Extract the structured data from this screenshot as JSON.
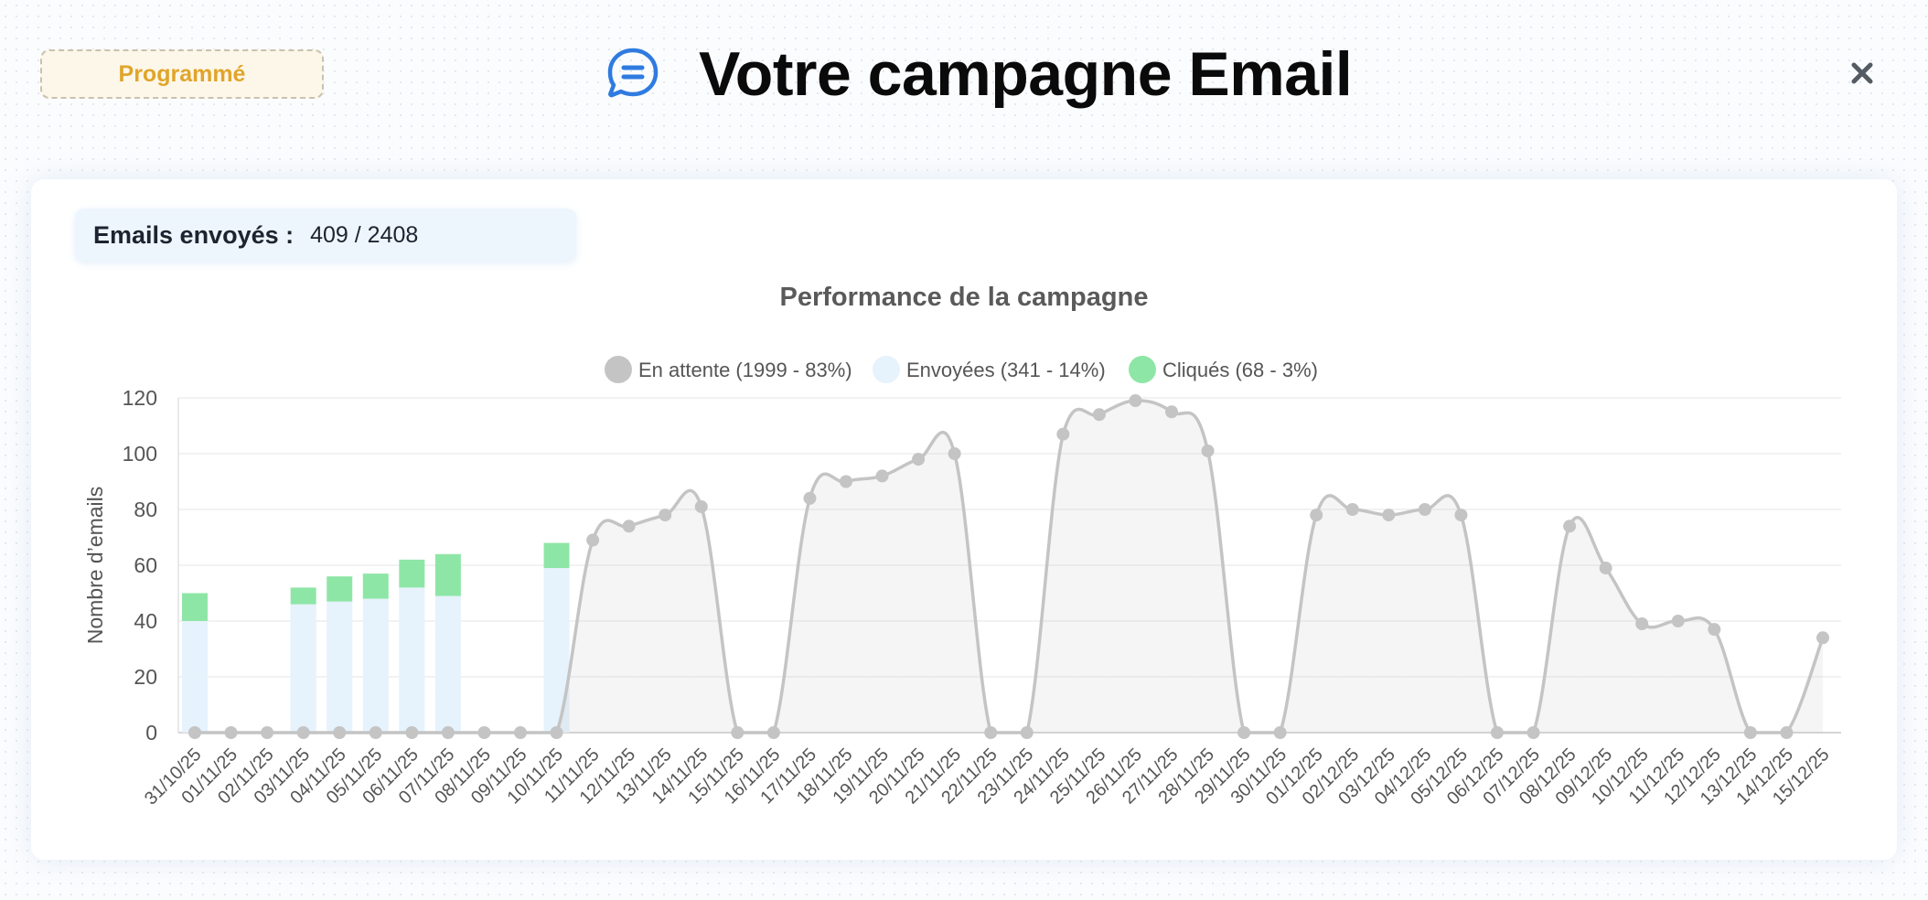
{
  "header": {
    "status_badge": "Programmé",
    "title": "Votre campagne Email",
    "title_icon": "chat-bubble-icon",
    "close_icon": "close-icon"
  },
  "stats": {
    "emails_sent_label": "Emails envoyés :",
    "emails_sent_value": "409 / 2408"
  },
  "colors": {
    "badge_text": "#e0a52a",
    "badge_bg": "#fdf7ea",
    "icon_blue": "#2f7be0",
    "pending": "#c4c4c4",
    "sent": "#e6f2fc",
    "clicked": "#8ee6a6"
  },
  "chart_data": {
    "type": "bar",
    "title": "Performance de la campagne",
    "xlabel": "",
    "ylabel": "Nombre d’emails",
    "ylim": [
      0,
      120
    ],
    "yticks": [
      0,
      20,
      40,
      60,
      80,
      100,
      120
    ],
    "grid": true,
    "legend_position": "top",
    "legend": [
      {
        "label": "En attente (1999 - 83%)",
        "color": "#c4c4c4"
      },
      {
        "label": "Envoyées (341 - 14%)",
        "color": "#e6f2fc"
      },
      {
        "label": "Cliqués (68 - 3%)",
        "color": "#8ee6a6"
      }
    ],
    "categories": [
      "31/10/25",
      "01/11/25",
      "02/11/25",
      "03/11/25",
      "04/11/25",
      "05/11/25",
      "06/11/25",
      "07/11/25",
      "08/11/25",
      "09/11/25",
      "10/11/25",
      "11/11/25",
      "12/11/25",
      "13/11/25",
      "14/11/25",
      "15/11/25",
      "16/11/25",
      "17/11/25",
      "18/11/25",
      "19/11/25",
      "20/11/25",
      "21/11/25",
      "22/11/25",
      "23/11/25",
      "24/11/25",
      "25/11/25",
      "26/11/25",
      "27/11/25",
      "28/11/25",
      "29/11/25",
      "30/11/25",
      "01/12/25",
      "02/12/25",
      "03/12/25",
      "04/12/25",
      "05/12/25",
      "06/12/25",
      "07/12/25",
      "08/12/25",
      "09/12/25",
      "10/12/25",
      "11/12/25",
      "12/12/25",
      "13/12/25",
      "14/12/25",
      "15/12/25"
    ],
    "series": [
      {
        "name": "En attente",
        "type": "area-line",
        "values": [
          0,
          0,
          0,
          0,
          0,
          0,
          0,
          0,
          0,
          0,
          0,
          69,
          74,
          78,
          81,
          0,
          0,
          84,
          90,
          92,
          98,
          100,
          0,
          0,
          107,
          114,
          119,
          115,
          101,
          0,
          0,
          78,
          80,
          78,
          80,
          78,
          0,
          0,
          74,
          59,
          39,
          40,
          37,
          0,
          0,
          34
        ]
      },
      {
        "name": "Envoyées",
        "type": "stacked-bar",
        "values": [
          40,
          0,
          0,
          46,
          47,
          48,
          52,
          49,
          0,
          0,
          59,
          0,
          0,
          0,
          0,
          0,
          0,
          0,
          0,
          0,
          0,
          0,
          0,
          0,
          0,
          0,
          0,
          0,
          0,
          0,
          0,
          0,
          0,
          0,
          0,
          0,
          0,
          0,
          0,
          0,
          0,
          0,
          0,
          0,
          0,
          0
        ]
      },
      {
        "name": "Cliqués",
        "type": "stacked-bar",
        "values": [
          10,
          0,
          0,
          6,
          9,
          9,
          10,
          15,
          0,
          0,
          9,
          0,
          0,
          0,
          0,
          0,
          0,
          0,
          0,
          0,
          0,
          0,
          0,
          0,
          0,
          0,
          0,
          0,
          0,
          0,
          0,
          0,
          0,
          0,
          0,
          0,
          0,
          0,
          0,
          0,
          0,
          0,
          0,
          0,
          0,
          0
        ]
      }
    ]
  }
}
